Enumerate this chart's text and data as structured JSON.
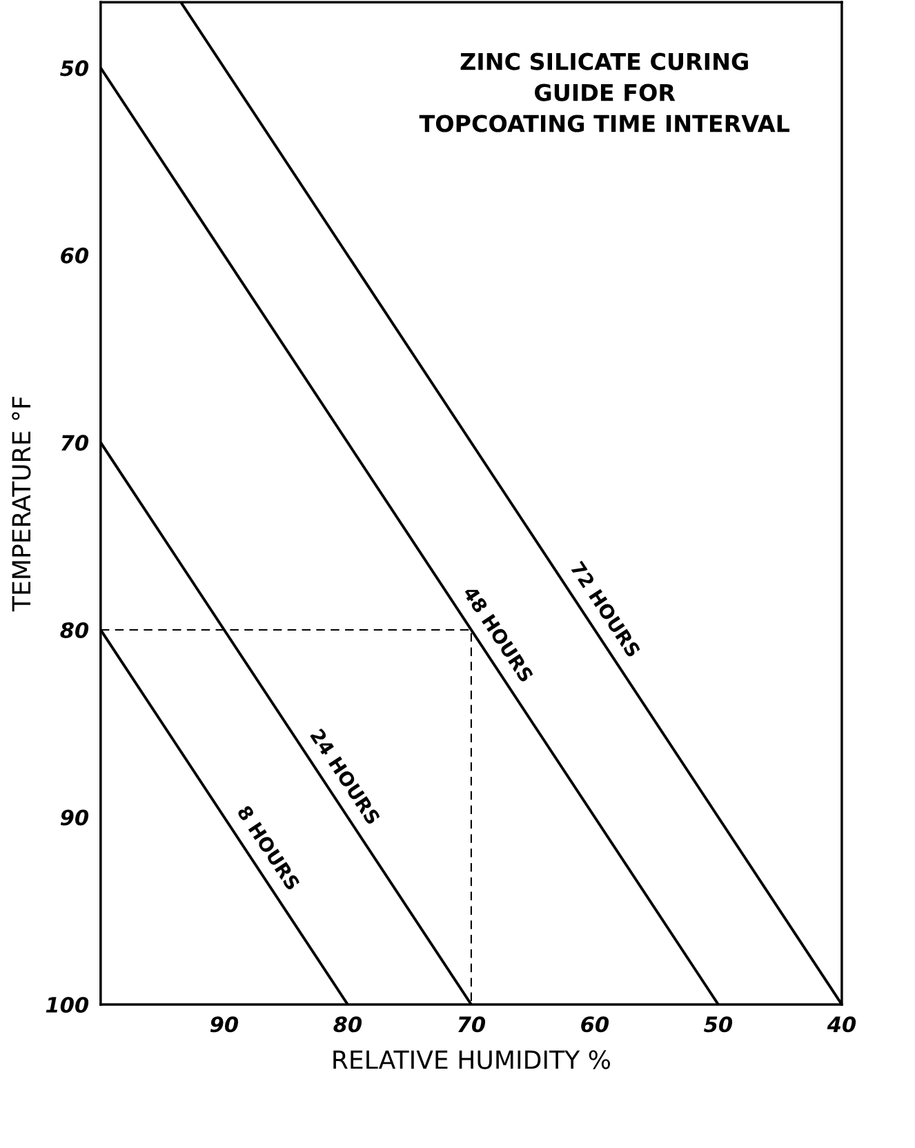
{
  "chart_data": {
    "type": "line",
    "title": "ZINC SILICATE CURING\nGUIDE FOR\nTOPCOATING TIME INTERVAL",
    "xlabel": "RELATIVE HUMIDITY %",
    "ylabel": "TEMPERATURE °F",
    "xlim": [
      100,
      40
    ],
    "ylim": [
      100,
      46.5
    ],
    "xticks": [
      90,
      80,
      70,
      60,
      50,
      40
    ],
    "yticks": [
      50,
      60,
      70,
      80,
      90,
      100
    ],
    "grid": false,
    "legend": false,
    "marker": "none",
    "series": [
      {
        "name": "8 HOURS",
        "color": "#000000",
        "x": [
          100,
          80
        ],
        "values": [
          80,
          100
        ]
      },
      {
        "name": "24 HOURS",
        "color": "#000000",
        "x": [
          100,
          70
        ],
        "values": [
          70,
          100
        ]
      },
      {
        "name": "48 HOURS",
        "color": "#000000",
        "x": [
          100,
          50
        ],
        "values": [
          50,
          100
        ]
      },
      {
        "name": "72 HOURS",
        "color": "#000000",
        "x": [
          93.5,
          40
        ],
        "values": [
          46.5,
          100
        ]
      },
      {
        "color": "#000000",
        "line_style": "dashed",
        "x": [
          100,
          70,
          70
        ],
        "values": [
          80,
          80,
          100
        ]
      }
    ]
  }
}
